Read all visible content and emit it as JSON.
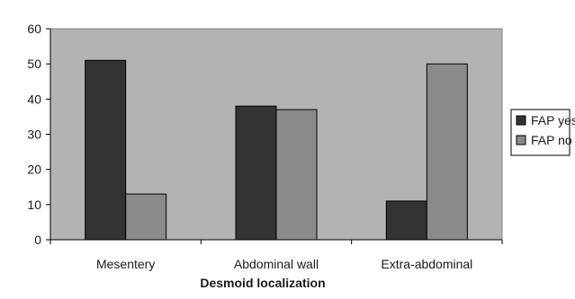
{
  "chart_data": {
    "type": "bar",
    "title": "",
    "xlabel": "Desmoid localization",
    "ylabel": "",
    "ylim": [
      0,
      60
    ],
    "yticks": [
      0,
      10,
      20,
      30,
      40,
      50,
      60
    ],
    "categories": [
      "Mesentery",
      "Abdominal wall",
      "Extra-abdominal"
    ],
    "series": [
      {
        "name": "FAP yes",
        "values": [
          51,
          38,
          11
        ],
        "color": "#333333"
      },
      {
        "name": "FAP no",
        "values": [
          13,
          37,
          50
        ],
        "color": "#8a8a8a"
      }
    ],
    "grid": false,
    "plot_background": "#b3b3b3",
    "legend_position": "right"
  }
}
